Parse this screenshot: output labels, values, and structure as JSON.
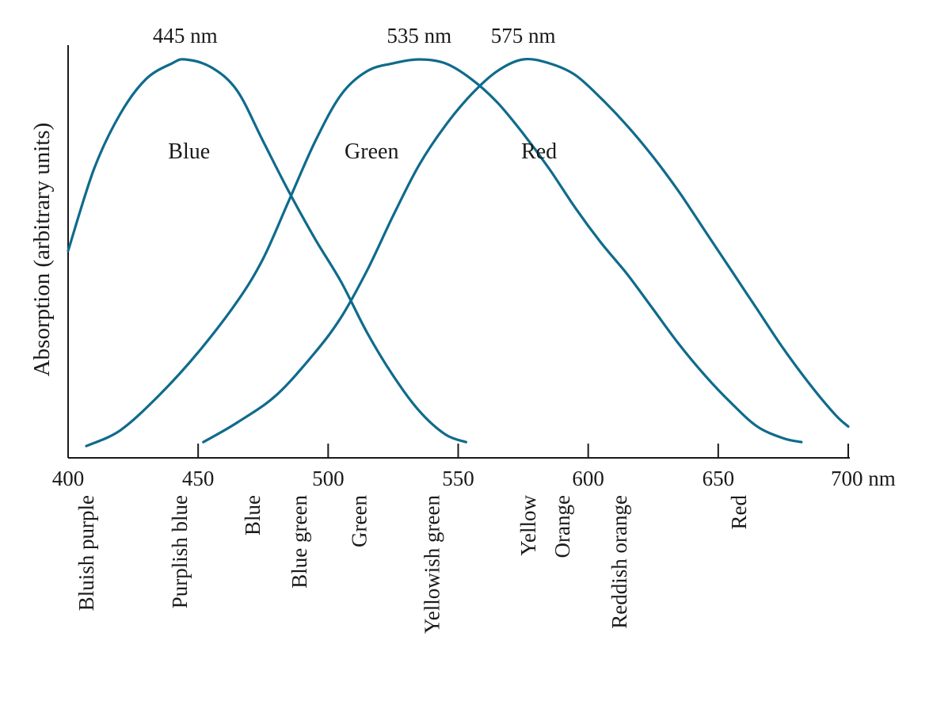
{
  "chart_data": {
    "type": "line",
    "title": "",
    "xlabel": "",
    "ylabel": "Absorption (arbitrary units)",
    "x_unit": "nm",
    "xlim": [
      400,
      700
    ],
    "xticks": [
      400,
      450,
      500,
      550,
      600,
      650,
      700
    ],
    "xtick_labels": [
      "400",
      "450",
      "500",
      "550",
      "600",
      "650",
      "700 nm"
    ],
    "ylim": [
      0,
      1
    ],
    "y_ticks_shown": false,
    "grid": false,
    "legend": "none",
    "series": [
      {
        "label": "Blue",
        "peak_label": "445 nm",
        "color": "#0f6b8c",
        "points": [
          [
            400,
            0.51
          ],
          [
            410,
            0.72
          ],
          [
            420,
            0.86
          ],
          [
            430,
            0.95
          ],
          [
            440,
            0.99
          ],
          [
            445,
            1.0
          ],
          [
            455,
            0.98
          ],
          [
            465,
            0.92
          ],
          [
            475,
            0.79
          ],
          [
            485,
            0.66
          ],
          [
            495,
            0.54
          ],
          [
            505,
            0.43
          ],
          [
            515,
            0.3
          ],
          [
            525,
            0.19
          ],
          [
            535,
            0.1
          ],
          [
            545,
            0.04
          ],
          [
            553,
            0.02
          ]
        ]
      },
      {
        "label": "Green",
        "peak_label": "535 nm",
        "color": "#0f6b8c",
        "points": [
          [
            407,
            0.01
          ],
          [
            420,
            0.05
          ],
          [
            435,
            0.14
          ],
          [
            450,
            0.25
          ],
          [
            465,
            0.38
          ],
          [
            475,
            0.49
          ],
          [
            485,
            0.64
          ],
          [
            495,
            0.79
          ],
          [
            505,
            0.91
          ],
          [
            515,
            0.97
          ],
          [
            525,
            0.99
          ],
          [
            535,
            1.0
          ],
          [
            545,
            0.99
          ],
          [
            555,
            0.95
          ],
          [
            565,
            0.89
          ],
          [
            575,
            0.81
          ],
          [
            585,
            0.72
          ],
          [
            595,
            0.62
          ],
          [
            605,
            0.53
          ],
          [
            615,
            0.45
          ],
          [
            625,
            0.36
          ],
          [
            635,
            0.27
          ],
          [
            645,
            0.19
          ],
          [
            655,
            0.12
          ],
          [
            665,
            0.06
          ],
          [
            675,
            0.03
          ],
          [
            682,
            0.02
          ]
        ]
      },
      {
        "label": "Red",
        "peak_label": "575 nm",
        "color": "#0f6b8c",
        "points": [
          [
            452,
            0.02
          ],
          [
            465,
            0.07
          ],
          [
            480,
            0.14
          ],
          [
            495,
            0.25
          ],
          [
            505,
            0.34
          ],
          [
            515,
            0.46
          ],
          [
            525,
            0.6
          ],
          [
            535,
            0.73
          ],
          [
            545,
            0.83
          ],
          [
            555,
            0.91
          ],
          [
            565,
            0.97
          ],
          [
            575,
            1.0
          ],
          [
            585,
            0.99
          ],
          [
            595,
            0.96
          ],
          [
            605,
            0.9
          ],
          [
            615,
            0.83
          ],
          [
            625,
            0.75
          ],
          [
            635,
            0.66
          ],
          [
            645,
            0.56
          ],
          [
            655,
            0.46
          ],
          [
            665,
            0.36
          ],
          [
            675,
            0.26
          ],
          [
            685,
            0.17
          ],
          [
            695,
            0.09
          ],
          [
            700,
            0.06
          ]
        ]
      }
    ],
    "color_names": [
      {
        "name": "Bluish purple",
        "x": 407
      },
      {
        "name": "Purplish blue",
        "x": 443
      },
      {
        "name": "Blue",
        "x": 471
      },
      {
        "name": "Blue green",
        "x": 489
      },
      {
        "name": "Green",
        "x": 512
      },
      {
        "name": "Yellowish green",
        "x": 540
      },
      {
        "name": "Yellow",
        "x": 577
      },
      {
        "name": "Orange",
        "x": 590
      },
      {
        "name": "Reddish orange",
        "x": 612
      },
      {
        "name": "Red",
        "x": 658
      }
    ]
  }
}
